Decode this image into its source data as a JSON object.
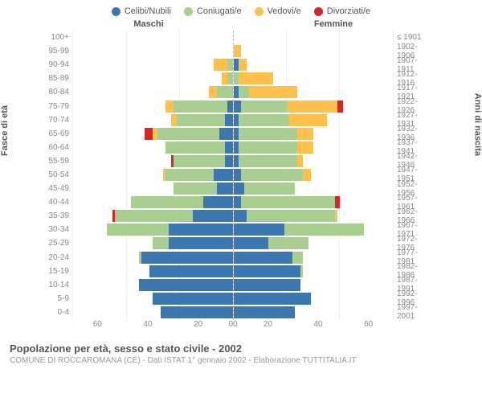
{
  "legend": [
    {
      "label": "Celibi/Nubili",
      "color": "#3c77b0"
    },
    {
      "label": "Coniugati/e",
      "color": "#a9ce92"
    },
    {
      "label": "Vedovi/e",
      "color": "#ffc04c"
    },
    {
      "label": "Divorziati/e",
      "color": "#d62728"
    }
  ],
  "headers": {
    "male": "Maschi",
    "female": "Femmine"
  },
  "axis_labels": {
    "left": "Fasce di età",
    "right": "Anni di nascita"
  },
  "colors": {
    "celibi": "#3c77b0",
    "coniugati": "#a9ce92",
    "vedovi": "#ffc04c",
    "divorziati": "#d62728",
    "grid": "#eeeeee",
    "center_line": "#bbbbbb",
    "text": "#555555",
    "text_light": "#888888",
    "bg": "#ffffff"
  },
  "x_axis": {
    "max": 60,
    "ticks": [
      0,
      20,
      40,
      60
    ]
  },
  "fontsize": {
    "legend": 11,
    "labels": 10,
    "title": 13,
    "subtitle": 10,
    "axis": 11
  },
  "rows": [
    {
      "age": "100+",
      "birth": "≤ 1901",
      "m": {
        "cel": 0,
        "con": 0,
        "ved": 0,
        "div": 0
      },
      "f": {
        "cel": 0,
        "con": 0,
        "ved": 0,
        "div": 0
      }
    },
    {
      "age": "95-99",
      "birth": "1902-1906",
      "m": {
        "cel": 0,
        "con": 0,
        "ved": 0,
        "div": 0
      },
      "f": {
        "cel": 0,
        "con": 0,
        "ved": 3,
        "div": 0
      }
    },
    {
      "age": "90-94",
      "birth": "1907-1911",
      "m": {
        "cel": 0,
        "con": 2,
        "ved": 5,
        "div": 0
      },
      "f": {
        "cel": 2,
        "con": 0,
        "ved": 3,
        "div": 0
      }
    },
    {
      "age": "85-89",
      "birth": "1912-1916",
      "m": {
        "cel": 0,
        "con": 2,
        "ved": 2,
        "div": 0
      },
      "f": {
        "cel": 0,
        "con": 2,
        "ved": 13,
        "div": 0
      }
    },
    {
      "age": "80-84",
      "birth": "1917-1921",
      "m": {
        "cel": 0,
        "con": 6,
        "ved": 3,
        "div": 0
      },
      "f": {
        "cel": 2,
        "con": 4,
        "ved": 18,
        "div": 0
      }
    },
    {
      "age": "75-79",
      "birth": "1922-1926",
      "m": {
        "cel": 2,
        "con": 20,
        "ved": 3,
        "div": 0
      },
      "f": {
        "cel": 3,
        "con": 17,
        "ved": 19,
        "div": 2
      }
    },
    {
      "age": "70-74",
      "birth": "1927-1931",
      "m": {
        "cel": 3,
        "con": 18,
        "ved": 2,
        "div": 0
      },
      "f": {
        "cel": 2,
        "con": 19,
        "ved": 14,
        "div": 0
      }
    },
    {
      "age": "65-69",
      "birth": "1932-1936",
      "m": {
        "cel": 5,
        "con": 23,
        "ved": 2,
        "div": 3
      },
      "f": {
        "cel": 2,
        "con": 22,
        "ved": 6,
        "div": 0
      }
    },
    {
      "age": "60-64",
      "birth": "1937-1941",
      "m": {
        "cel": 3,
        "con": 22,
        "ved": 0,
        "div": 0
      },
      "f": {
        "cel": 2,
        "con": 22,
        "ved": 6,
        "div": 0
      }
    },
    {
      "age": "55-59",
      "birth": "1942-1946",
      "m": {
        "cel": 3,
        "con": 19,
        "ved": 0,
        "div": 1
      },
      "f": {
        "cel": 2,
        "con": 22,
        "ved": 2,
        "div": 0
      }
    },
    {
      "age": "50-54",
      "birth": "1947-1951",
      "m": {
        "cel": 7,
        "con": 18,
        "ved": 1,
        "div": 0
      },
      "f": {
        "cel": 3,
        "con": 23,
        "ved": 3,
        "div": 0
      }
    },
    {
      "age": "45-49",
      "birth": "1952-1956",
      "m": {
        "cel": 6,
        "con": 16,
        "ved": 0,
        "div": 0
      },
      "f": {
        "cel": 4,
        "con": 19,
        "ved": 0,
        "div": 0
      }
    },
    {
      "age": "40-44",
      "birth": "1957-1961",
      "m": {
        "cel": 11,
        "con": 27,
        "ved": 0,
        "div": 0
      },
      "f": {
        "cel": 3,
        "con": 35,
        "ved": 0,
        "div": 2
      }
    },
    {
      "age": "35-39",
      "birth": "1962-1966",
      "m": {
        "cel": 15,
        "con": 29,
        "ved": 0,
        "div": 1
      },
      "f": {
        "cel": 5,
        "con": 33,
        "ved": 1,
        "div": 0
      }
    },
    {
      "age": "30-34",
      "birth": "1967-1971",
      "m": {
        "cel": 24,
        "con": 23,
        "ved": 0,
        "div": 0
      },
      "f": {
        "cel": 19,
        "con": 30,
        "ved": 0,
        "div": 0
      }
    },
    {
      "age": "25-29",
      "birth": "1972-1976",
      "m": {
        "cel": 24,
        "con": 6,
        "ved": 0,
        "div": 0
      },
      "f": {
        "cel": 13,
        "con": 15,
        "ved": 0,
        "div": 0
      }
    },
    {
      "age": "20-24",
      "birth": "1977-1981",
      "m": {
        "cel": 34,
        "con": 1,
        "ved": 0,
        "div": 0
      },
      "f": {
        "cel": 22,
        "con": 4,
        "ved": 0,
        "div": 0
      }
    },
    {
      "age": "15-19",
      "birth": "1982-1986",
      "m": {
        "cel": 31,
        "con": 0,
        "ved": 0,
        "div": 0
      },
      "f": {
        "cel": 25,
        "con": 1,
        "ved": 0,
        "div": 0
      }
    },
    {
      "age": "10-14",
      "birth": "1987-1991",
      "m": {
        "cel": 35,
        "con": 0,
        "ved": 0,
        "div": 0
      },
      "f": {
        "cel": 25,
        "con": 0,
        "ved": 0,
        "div": 0
      }
    },
    {
      "age": "5-9",
      "birth": "1992-1996",
      "m": {
        "cel": 30,
        "con": 0,
        "ved": 0,
        "div": 0
      },
      "f": {
        "cel": 29,
        "con": 0,
        "ved": 0,
        "div": 0
      }
    },
    {
      "age": "0-4",
      "birth": "1997-2001",
      "m": {
        "cel": 27,
        "con": 0,
        "ved": 0,
        "div": 0
      },
      "f": {
        "cel": 23,
        "con": 0,
        "ved": 0,
        "div": 0
      }
    }
  ],
  "footer": {
    "title": "Popolazione per età, sesso e stato civile - 2002",
    "subtitle": "COMUNE DI ROCCAROMANA (CE) - Dati ISTAT 1° gennaio 2002 - Elaborazione TUTTITALIA.IT"
  }
}
